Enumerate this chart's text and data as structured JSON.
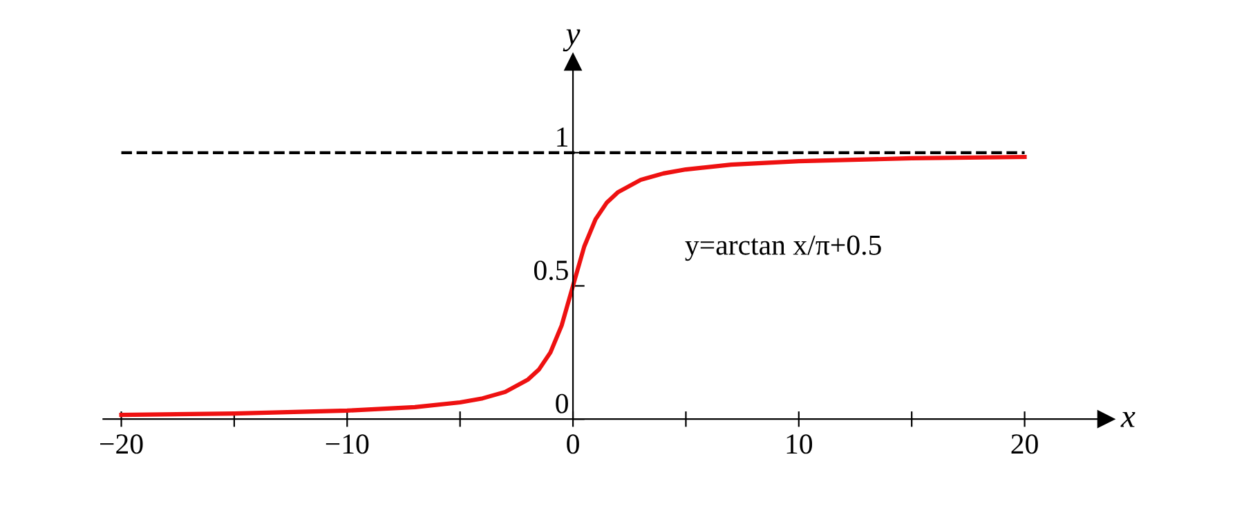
{
  "chart_data": {
    "type": "line",
    "xlabel": "x",
    "ylabel": "y",
    "x": [
      -20,
      -15,
      -10,
      -7,
      -5,
      -4,
      -3,
      -2,
      -1.5,
      -1,
      -0.5,
      0,
      0.5,
      1,
      1.5,
      2,
      3,
      4,
      5,
      7,
      10,
      15,
      20
    ],
    "series": [
      {
        "name": "y=arctan x/π+0.5",
        "color": "#ee1111",
        "values": [
          0.016,
          0.021,
          0.032,
          0.045,
          0.063,
          0.078,
          0.102,
          0.148,
          0.187,
          0.25,
          0.352,
          0.5,
          0.648,
          0.75,
          0.813,
          0.852,
          0.898,
          0.922,
          0.937,
          0.955,
          0.968,
          0.979,
          0.984
        ]
      }
    ],
    "xlim": [
      -20.8,
      23.6
    ],
    "ylim": [
      0,
      1.34
    ],
    "xticks": [
      {
        "value": -20,
        "label": "−20"
      },
      {
        "value": -15,
        "label": null
      },
      {
        "value": -10,
        "label": "−10"
      },
      {
        "value": -5,
        "label": null
      },
      0,
      {
        "value": 5,
        "label": null
      },
      10,
      {
        "value": 15,
        "label": null
      },
      20
    ],
    "yticks": [
      0,
      0.5,
      1
    ],
    "ref_lines": [
      {
        "axis": "y",
        "value": 1,
        "label": null,
        "color": "#000000",
        "line_style": "dashed"
      }
    ],
    "grid": false,
    "legend": false,
    "marker": "none",
    "line_style": "solid"
  }
}
